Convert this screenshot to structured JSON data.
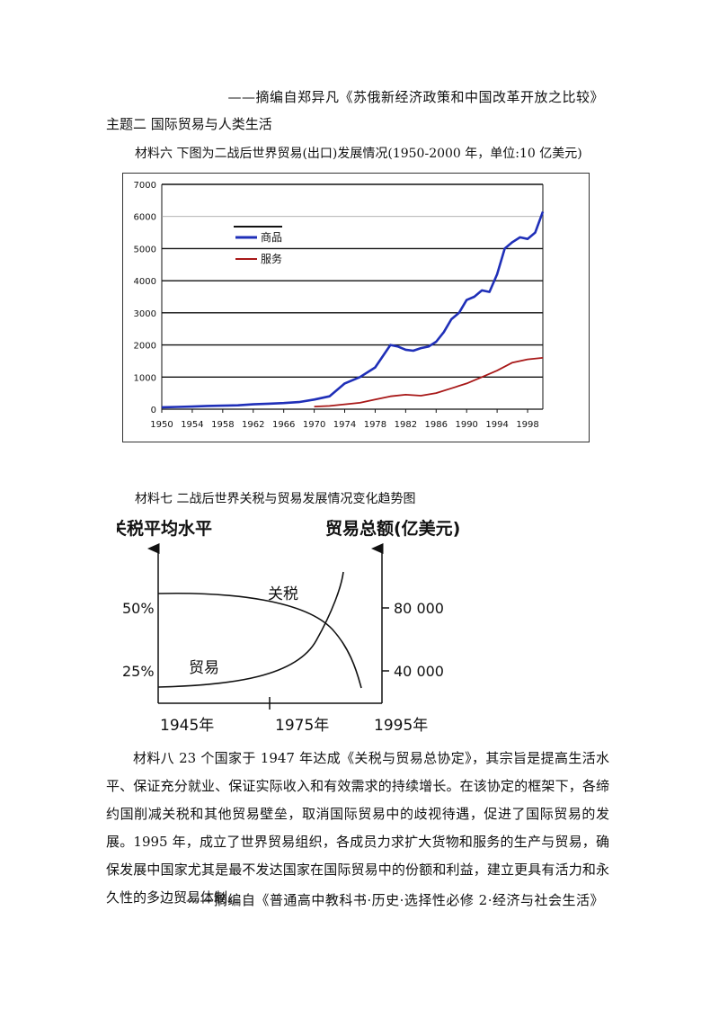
{
  "source_top": "——摘编自郑异凡《苏俄新经济政策和中国改革开放之比较》",
  "theme_title": "主题二 国际贸易与人类生活",
  "material6_caption": "材料六  下图为二战后世界贸易(出口)发展情况(1950-2000 年，单位:10 亿美元)",
  "chart_data": [
    {
      "type": "line",
      "x_ticks": [
        "1950",
        "1954",
        "1958",
        "1962",
        "1966",
        "1970",
        "1974",
        "1978",
        "1982",
        "1986",
        "1990",
        "1994",
        "1998"
      ],
      "y_ticks": [
        "0",
        "1000",
        "2000",
        "3000",
        "4000",
        "5000",
        "6000",
        "7000"
      ],
      "ylim": [
        0,
        7000
      ],
      "xlim": [
        1950,
        2000
      ],
      "legend_position": "top-left",
      "series": [
        {
          "name": "商品",
          "color": "#1f2fb8",
          "x": [
            1950,
            1952,
            1954,
            1956,
            1958,
            1960,
            1962,
            1964,
            1966,
            1968,
            1970,
            1972,
            1974,
            1976,
            1978,
            1979,
            1980,
            1981,
            1982,
            1983,
            1984,
            1985,
            1986,
            1987,
            1988,
            1989,
            1990,
            1991,
            1992,
            1993,
            1994,
            1995,
            1996,
            1997,
            1998,
            1999,
            2000
          ],
          "y": [
            60,
            70,
            80,
            100,
            110,
            120,
            150,
            170,
            190,
            220,
            300,
            400,
            800,
            1000,
            1300,
            1650,
            2000,
            1950,
            1850,
            1820,
            1900,
            1950,
            2100,
            2400,
            2800,
            3000,
            3400,
            3500,
            3700,
            3650,
            4200,
            5000,
            5200,
            5350,
            5300,
            5500,
            6150
          ]
        },
        {
          "name": "服务",
          "color": "#a81818",
          "x": [
            1970,
            1972,
            1974,
            1976,
            1978,
            1980,
            1982,
            1984,
            1986,
            1988,
            1990,
            1992,
            1994,
            1996,
            1998,
            2000
          ],
          "y": [
            80,
            100,
            150,
            200,
            300,
            400,
            450,
            420,
            500,
            650,
            800,
            1000,
            1200,
            1450,
            1550,
            1600
          ]
        }
      ]
    },
    {
      "type": "line",
      "left_axis_label": "关税平均水平",
      "right_axis_label": "贸易总额(亿美元)",
      "left_ticks": [
        "50%",
        "25%"
      ],
      "right_ticks": [
        "80 000",
        "40 000"
      ],
      "x_ticks": [
        "1945年",
        "1975年",
        "1995年"
      ],
      "series": [
        {
          "name": "关税"
        },
        {
          "name": "贸易"
        }
      ]
    }
  ],
  "material7_caption": "材料七  二战后世界关税与贸易发展情况变化趋势图",
  "material8_text": "材料八  23 个国家于 1947 年达成《关税与贸易总协定》，其宗旨是提高生活水平、保证充分就业、保证实际收入和有效需求的持续增长。在该协定的框架下，各缔约国削减关税和其他贸易壁垒，取消国际贸易中的歧视待遇，促进了国际贸易的发展。1995 年，成立了世界贸易组织，各成员力求扩大货物和服务的生产与贸易，确保发展中国家尤其是最不发达国家在国际贸易中的份额和利益，建立更具有活力和永久性的多边贸易体制。",
  "source_bottom": "——摘编自《普通高中教科书·历史·选择性必修 2·经济与社会生活》"
}
